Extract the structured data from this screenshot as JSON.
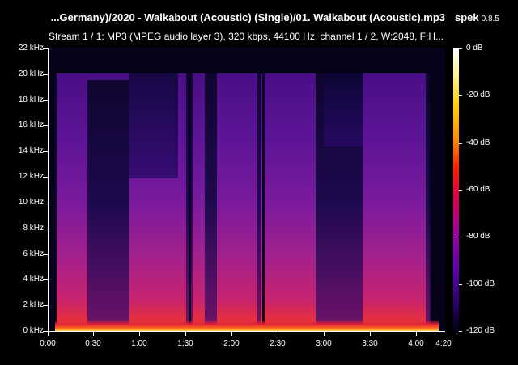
{
  "header": {
    "file_title": "...Germany)/2020 - Walkabout (Acoustic) (Single)/01. Walkabout (Acoustic).mp3",
    "app_name": "spek",
    "app_version": "0.8.5",
    "stream_info": "Stream 1 / 1: MP3 (MPEG audio layer 3), 320 kbps, 44100 Hz, channel 1 / 2, W:2048, F:H..."
  },
  "frequency_axis": {
    "labels": [
      "22 kHz",
      "20 kHz",
      "18 kHz",
      "16 kHz",
      "14 kHz",
      "12 kHz",
      "10 kHz",
      "8 kHz",
      "6 kHz",
      "4 kHz",
      "2 kHz",
      "0 kHz"
    ]
  },
  "time_axis": {
    "labels": [
      "0:00",
      "0:30",
      "1:00",
      "1:30",
      "2:00",
      "2:30",
      "3:00",
      "3:30",
      "4:00",
      "4:20"
    ]
  },
  "level_scale": {
    "labels": [
      "0 dB",
      "-20 dB",
      "-40 dB",
      "-60 dB",
      "-80 dB",
      "-100 dB",
      "-120 dB"
    ]
  },
  "colors": {
    "background": "#000000",
    "quiet": "#0a0630",
    "mid": "#7a1aa0",
    "loud": "#ffd24a"
  }
}
